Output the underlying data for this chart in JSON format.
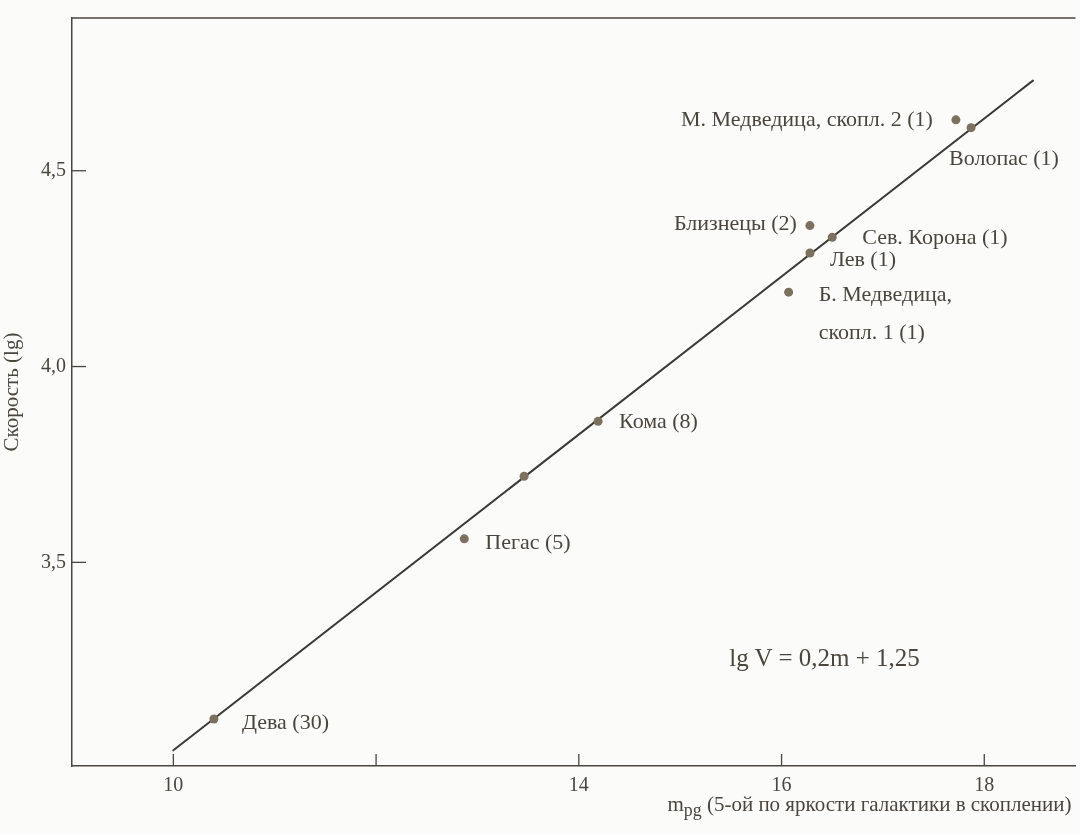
{
  "chart_data": {
    "type": "scatter",
    "xlabel": "m$_{pg}$ (5-ой по яркости галактики в скоплении)",
    "ylabel": "Скорость (lg)",
    "xlim": [
      9,
      18.9
    ],
    "xticks": [
      10,
      {
        "value": 12,
        "label": null
      },
      14,
      16,
      18
    ],
    "ylim": [
      2.98,
      4.89
    ],
    "yticks": [
      {
        "value": 3.5,
        "label": "3,5"
      },
      {
        "value": 4,
        "label": "4,0"
      },
      {
        "value": 4.5,
        "label": "4,5"
      }
    ],
    "legend": false,
    "series": [
      {
        "type": "line",
        "x": [
          10,
          18.48
        ],
        "values": [
          3.02,
          4.73
        ],
        "color": "#3c3a34",
        "marker": "none",
        "line_style": "solid"
      },
      {
        "x": [
          10.4,
          12.87,
          13.46,
          14.19,
          16.07,
          16.28,
          16.28,
          16.5,
          17.72,
          17.87
        ],
        "values": [
          3.1,
          3.56,
          3.72,
          3.86,
          4.19,
          4.29,
          4.36,
          4.33,
          4.63,
          4.61
        ],
        "color": "#7d705f",
        "marker": "circle"
      }
    ],
    "annotations": [
      {
        "text": "Дева (30)",
        "x": 10.4,
        "y": 3.1
      },
      {
        "text": "Пегас (5)",
        "x": 12.87,
        "y": 3.56
      },
      {
        "text": "Кома (8)",
        "x": 14.19,
        "y": 3.86
      },
      {
        "text": "Б. Медведица, скопл. 1 (1)",
        "x": 16.07,
        "y": 4.19
      },
      {
        "text": "Лев (1)",
        "x": 16.28,
        "y": 4.29
      },
      {
        "text": "Близнецы (2)",
        "x": 16.28,
        "y": 4.36
      },
      {
        "text": "Сев. Корона (1)",
        "x": 16.5,
        "y": 4.33
      },
      {
        "text": "М. Медведица, скопл. 2 (1)",
        "x": 17.72,
        "y": 4.63
      },
      {
        "text": "Волопас (1)",
        "x": 17.87,
        "y": 4.61
      },
      "lg V = 0,2m + 1,25"
    ]
  }
}
